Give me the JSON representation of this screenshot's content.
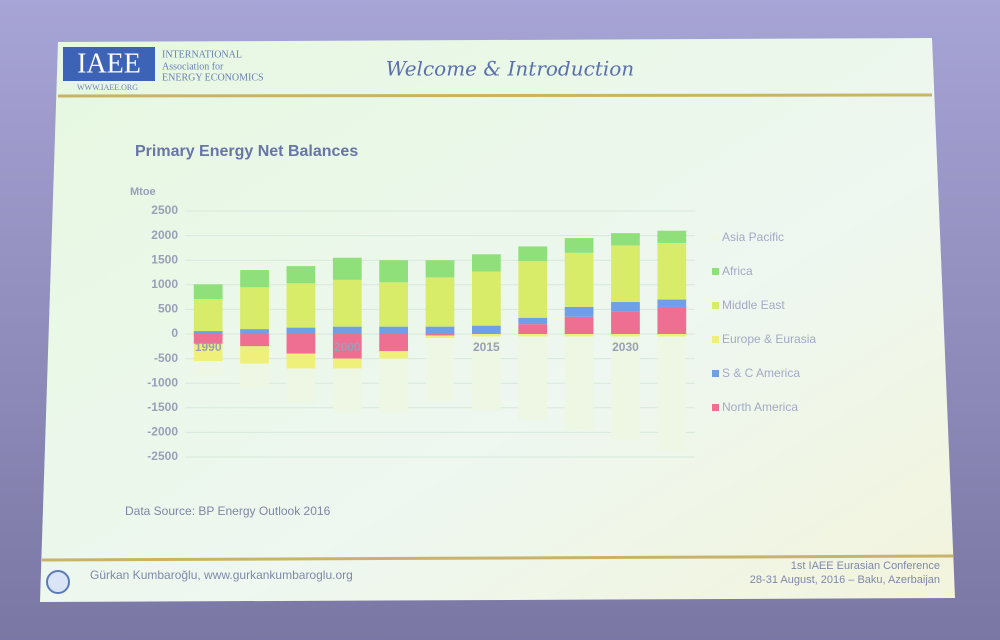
{
  "slide": {
    "logo": "IAEE",
    "org_line1": "International",
    "org_line2": "Association for",
    "org_line3": "Energy Economics",
    "org_url": "WWW.IAEE.ORG",
    "heading": "Welcome & Introduction",
    "source": "Data Source: BP Energy Outlook 2016",
    "author": "Gürkan Kumbaroğlu, www.gurkankumbaroglu.org",
    "conference": "1st IAEE Eurasian Conference",
    "dates": "28-31 August, 2016 – Baku, Azerbaijan"
  },
  "chart_data": {
    "type": "stacked-bar",
    "title": "Primary Energy Net Balances",
    "y_label": "Mtoe",
    "categories": [
      "1990",
      null,
      null,
      "2000",
      null,
      null,
      "2015",
      null,
      null,
      "2030",
      null
    ],
    "series": [
      {
        "name": "Asia Pacific",
        "color": "#eef6e4",
        "values": [
          -300,
          -500,
          -700,
          -900,
          -1100,
          -1300,
          -1500,
          -1700,
          -1900,
          -2100,
          -2300
        ]
      },
      {
        "name": "Africa",
        "color": "#8fe07a",
        "values": [
          300,
          350,
          350,
          450,
          450,
          350,
          350,
          300,
          300,
          250,
          250
        ]
      },
      {
        "name": "Middle East",
        "color": "#d8ec6a",
        "values": [
          650,
          850,
          900,
          950,
          900,
          1000,
          1100,
          1150,
          1100,
          1150,
          1150
        ]
      },
      {
        "name": "Europe & Eurasia",
        "color": "#eef07a",
        "values": [
          -350,
          -350,
          -300,
          -200,
          -150,
          -50,
          -50,
          -50,
          -50,
          -50,
          -50
        ]
      },
      {
        "name": "S & C America",
        "color": "#6f9fe6",
        "values": [
          60,
          100,
          130,
          150,
          150,
          150,
          150,
          130,
          200,
          200,
          150
        ]
      },
      {
        "name": "North America",
        "color": "#ee6f92",
        "values": [
          -200,
          -250,
          -400,
          -500,
          -350,
          -30,
          20,
          200,
          350,
          450,
          550
        ]
      }
    ],
    "ylim": [
      -2500,
      2500
    ],
    "yticks": [
      2500,
      2000,
      1500,
      1000,
      500,
      0,
      -500,
      -1000,
      -1500,
      -2000,
      -2500
    ],
    "grid": true
  }
}
